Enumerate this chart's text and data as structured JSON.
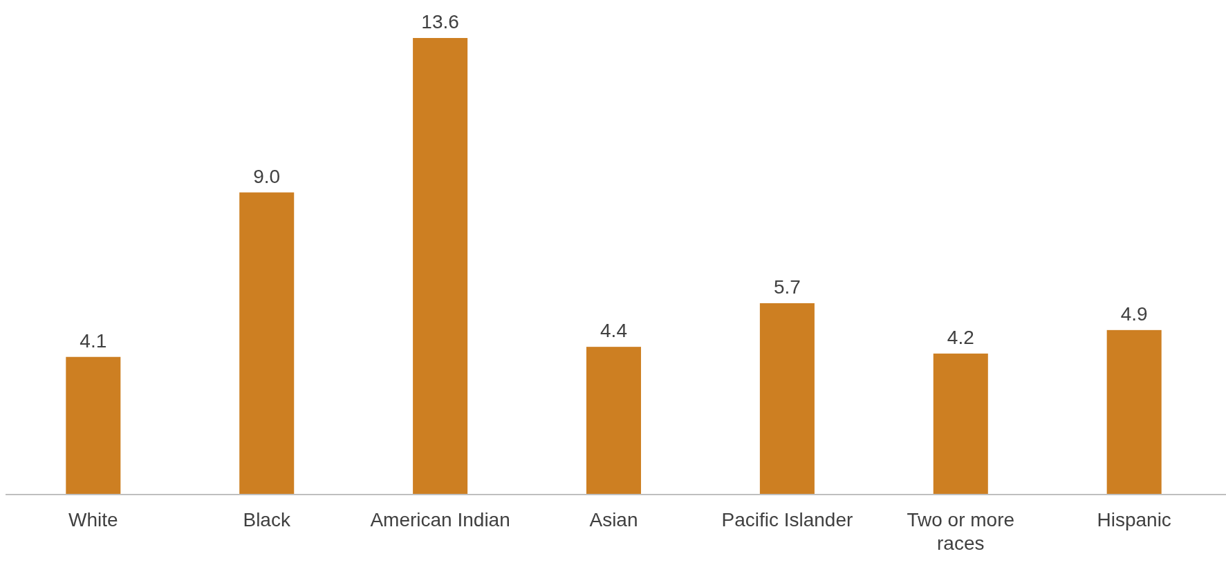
{
  "chart_data": {
    "type": "bar",
    "categories": [
      "White",
      "Black",
      "American Indian",
      "Asian",
      "Pacific Islander",
      "Two or more races",
      "Hispanic"
    ],
    "values": [
      4.1,
      9.0,
      13.6,
      4.4,
      5.7,
      4.2,
      4.9
    ],
    "value_labels": [
      "4.1",
      "9.0",
      "13.6",
      "4.4",
      "5.7",
      "4.2",
      "4.9"
    ],
    "color": "#cd7f22"
  }
}
